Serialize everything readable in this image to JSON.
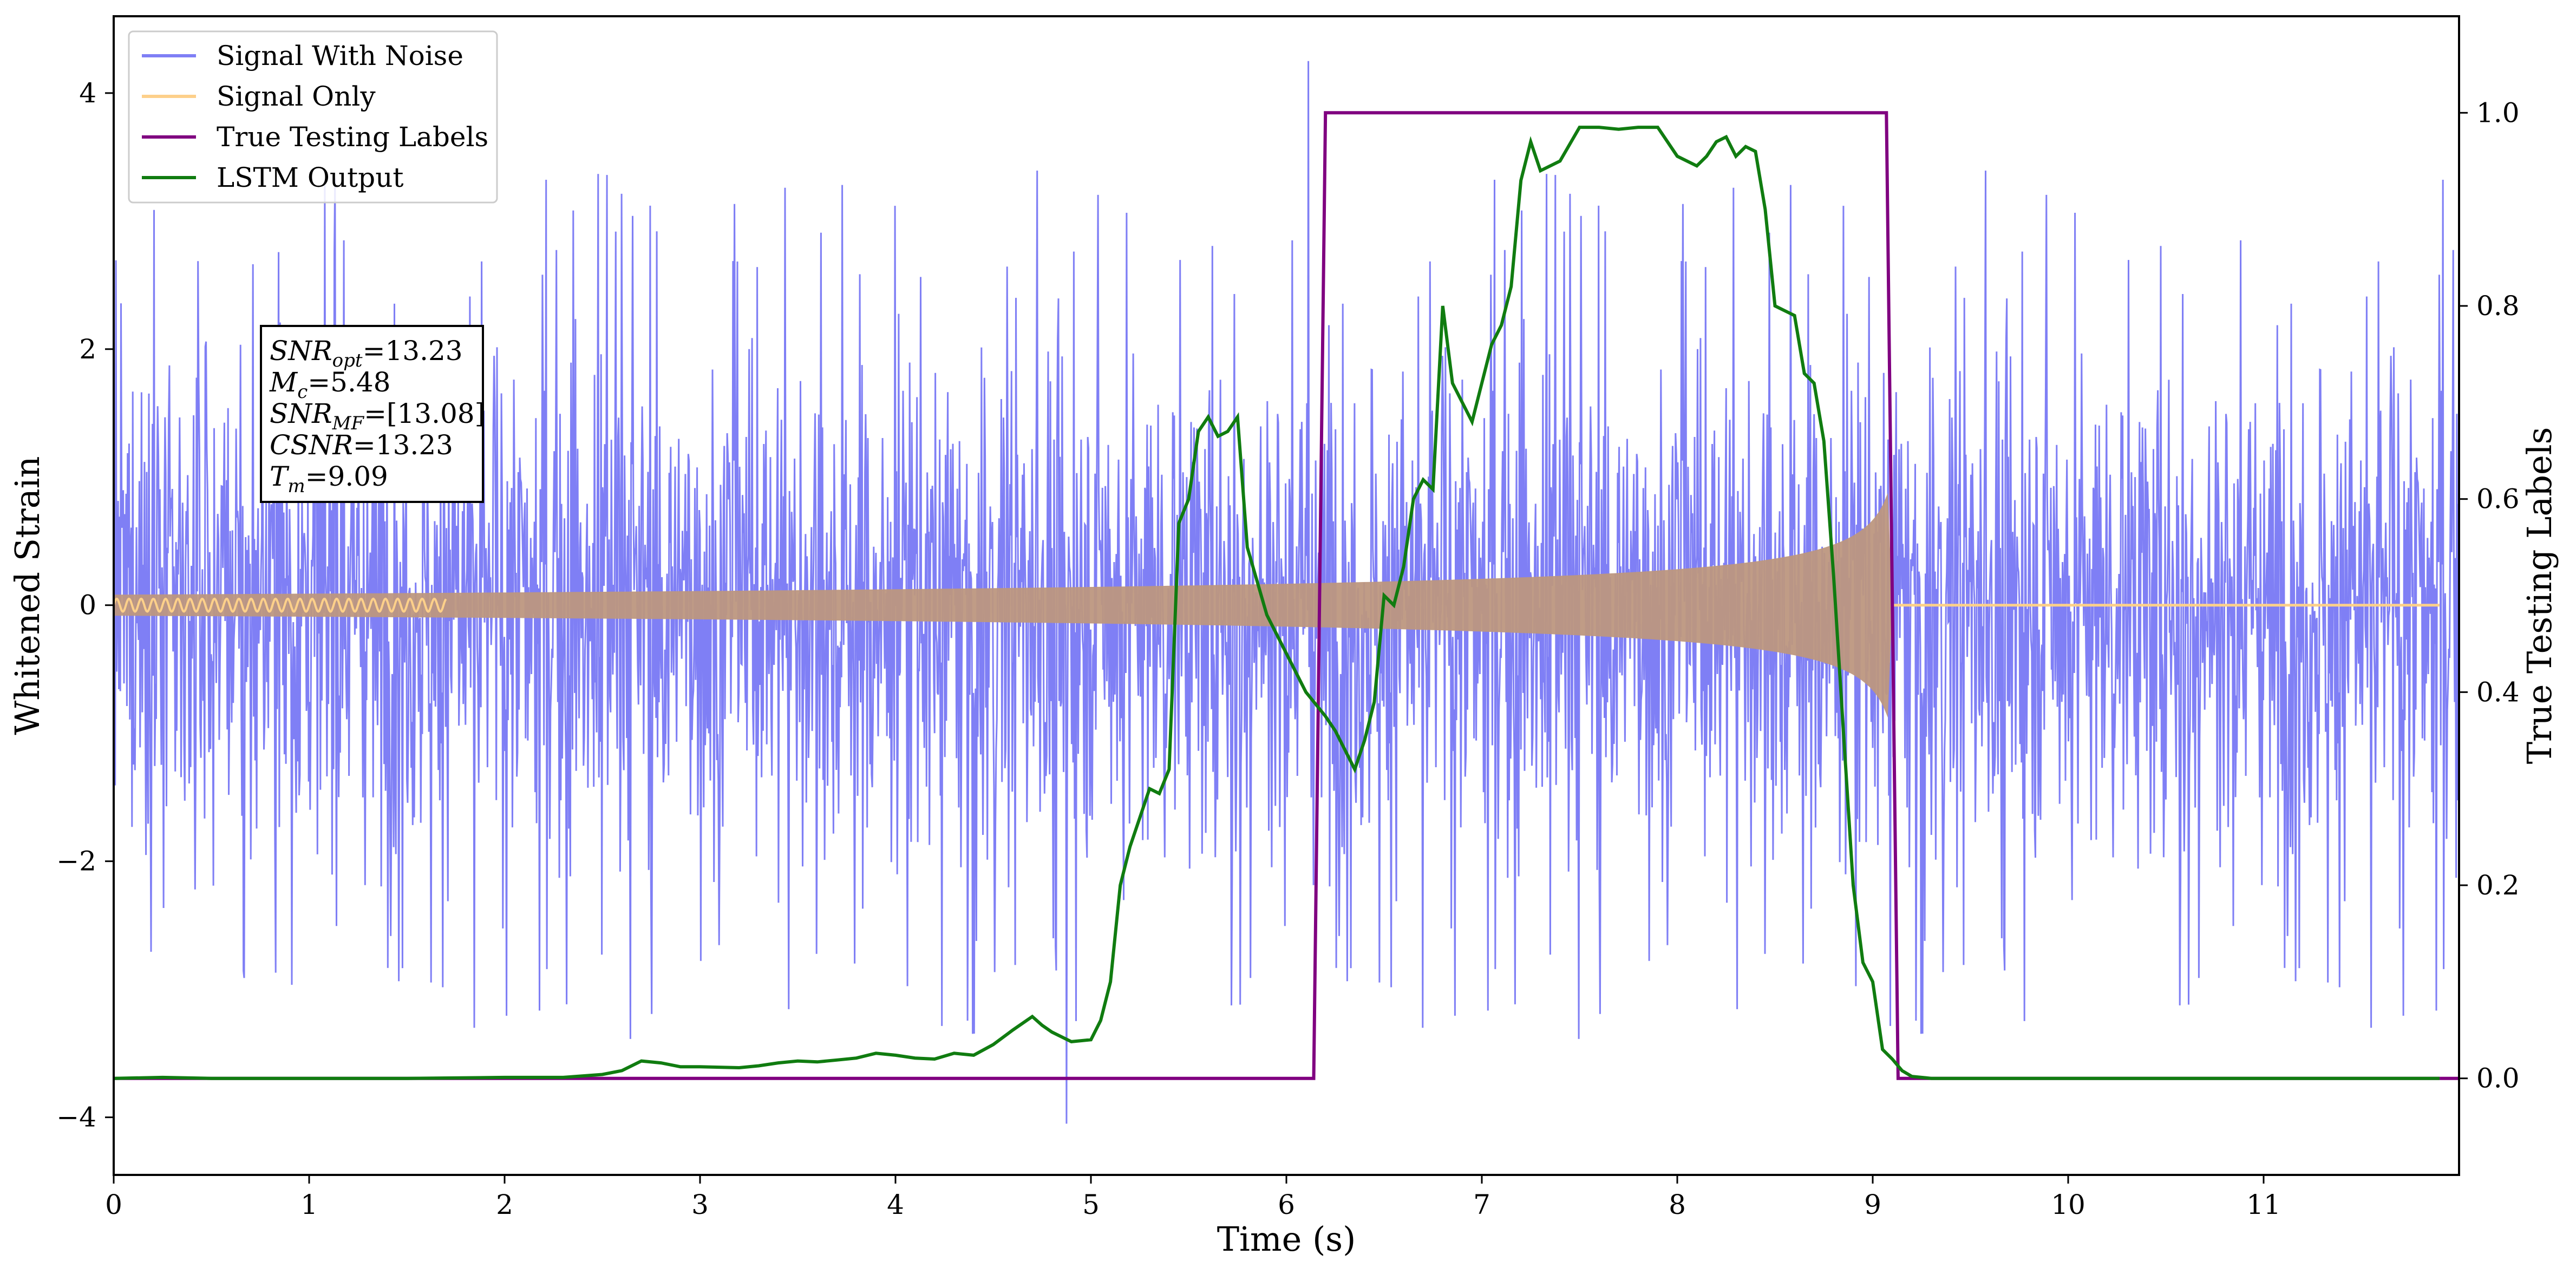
{
  "chart_data": {
    "type": "line",
    "title": "",
    "xlabel": "Time (s)",
    "ylabel": "Whitened Strain",
    "y2label": "True Testing Labels",
    "xlim": [
      0,
      12
    ],
    "ylim": [
      -4.45,
      4.6
    ],
    "y2lim": [
      -0.1,
      1.1
    ],
    "xticks": [
      "0",
      "1",
      "2",
      "3",
      "4",
      "5",
      "6",
      "7",
      "8",
      "9",
      "10",
      "11"
    ],
    "yticks": [
      "−4",
      "−2",
      "0",
      "2",
      "4"
    ],
    "y2ticks": [
      "0.0",
      "0.2",
      "0.4",
      "0.6",
      "0.8",
      "1.0"
    ],
    "legend_position": "top-left",
    "legend": [
      "Signal With Noise",
      "Signal Only",
      "True Testing Labels",
      "LSTM Output"
    ],
    "colors": {
      "noise": "#7f7ff5",
      "signal": "#fdd08a",
      "signal_overlap": "#bd9780",
      "labels": "#800080",
      "lstm": "#107c10"
    },
    "series": [
      {
        "name": "Signal With Noise",
        "axis": "left",
        "description_values": "white noise, std ~1.0, whitened strain",
        "envelope": {
          "sigma": 1.0,
          "spikes_max": 4.25,
          "spikes_min": -4.05
        },
        "range_s": [
          0,
          12
        ]
      },
      {
        "name": "Signal Only",
        "axis": "left",
        "chirp": {
          "start_s": 0,
          "merger_s": 9.1,
          "amp_start": 0.05,
          "amp_peak": 0.9,
          "ringdown_to_s": 9.1
        },
        "after_merger_value": 0.0
      },
      {
        "name": "True Testing Labels",
        "axis": "right",
        "x": [
          0,
          6.14,
          6.2,
          9.07,
          9.13,
          12
        ],
        "y": [
          0,
          0,
          1,
          1,
          0,
          0
        ]
      },
      {
        "name": "LSTM Output",
        "axis": "right",
        "x": [
          0,
          0.25,
          0.5,
          1.0,
          1.5,
          2.0,
          2.3,
          2.5,
          2.6,
          2.7,
          2.8,
          2.9,
          3.0,
          3.2,
          3.3,
          3.4,
          3.5,
          3.6,
          3.7,
          3.8,
          3.9,
          4.0,
          4.1,
          4.2,
          4.3,
          4.4,
          4.5,
          4.6,
          4.7,
          4.75,
          4.8,
          4.9,
          5.0,
          5.05,
          5.1,
          5.15,
          5.2,
          5.25,
          5.3,
          5.35,
          5.4,
          5.45,
          5.5,
          5.55,
          5.6,
          5.65,
          5.7,
          5.75,
          5.8,
          5.9,
          6.0,
          6.1,
          6.2,
          6.25,
          6.3,
          6.35,
          6.4,
          6.45,
          6.5,
          6.55,
          6.6,
          6.65,
          6.7,
          6.75,
          6.8,
          6.85,
          6.9,
          6.95,
          7.0,
          7.05,
          7.1,
          7.15,
          7.2,
          7.25,
          7.3,
          7.4,
          7.5,
          7.6,
          7.7,
          7.8,
          7.9,
          8.0,
          8.1,
          8.15,
          8.2,
          8.25,
          8.3,
          8.35,
          8.4,
          8.45,
          8.5,
          8.55,
          8.6,
          8.65,
          8.7,
          8.75,
          8.8,
          8.85,
          8.9,
          8.95,
          9.0,
          9.05,
          9.1,
          9.15,
          9.2,
          9.3,
          9.5,
          10.0,
          11.0,
          11.9
        ],
        "y": [
          0.0,
          0.001,
          0.0,
          0.0,
          0.0,
          0.001,
          0.001,
          0.004,
          0.008,
          0.018,
          0.016,
          0.012,
          0.012,
          0.011,
          0.013,
          0.016,
          0.018,
          0.017,
          0.019,
          0.021,
          0.026,
          0.024,
          0.021,
          0.02,
          0.026,
          0.024,
          0.035,
          0.05,
          0.064,
          0.055,
          0.048,
          0.038,
          0.04,
          0.06,
          0.1,
          0.2,
          0.24,
          0.27,
          0.3,
          0.295,
          0.32,
          0.575,
          0.6,
          0.67,
          0.685,
          0.665,
          0.67,
          0.685,
          0.55,
          0.48,
          0.44,
          0.4,
          0.375,
          0.36,
          0.34,
          0.32,
          0.35,
          0.39,
          0.5,
          0.49,
          0.53,
          0.6,
          0.62,
          0.61,
          0.8,
          0.72,
          0.7,
          0.68,
          0.72,
          0.76,
          0.78,
          0.82,
          0.93,
          0.97,
          0.94,
          0.95,
          0.985,
          0.985,
          0.983,
          0.985,
          0.985,
          0.955,
          0.945,
          0.955,
          0.97,
          0.975,
          0.955,
          0.965,
          0.96,
          0.9,
          0.8,
          0.795,
          0.79,
          0.73,
          0.72,
          0.66,
          0.52,
          0.36,
          0.2,
          0.12,
          0.1,
          0.03,
          0.02,
          0.008,
          0.002,
          0.0,
          0.0,
          0.0,
          0.0,
          0.0
        ]
      }
    ],
    "annotation": {
      "lines": [
        {
          "var": "SNR",
          "sub": "opt",
          "val": "=13.23"
        },
        {
          "var": "M",
          "sub": "c",
          "val": "=5.48"
        },
        {
          "var": "SNR",
          "sub": "MF",
          "val": "=[13.08]"
        },
        {
          "var": "CSNR",
          "sub": "",
          "val": "=13.23"
        },
        {
          "var": "T",
          "sub": "m",
          "val": "=9.09"
        }
      ]
    }
  }
}
